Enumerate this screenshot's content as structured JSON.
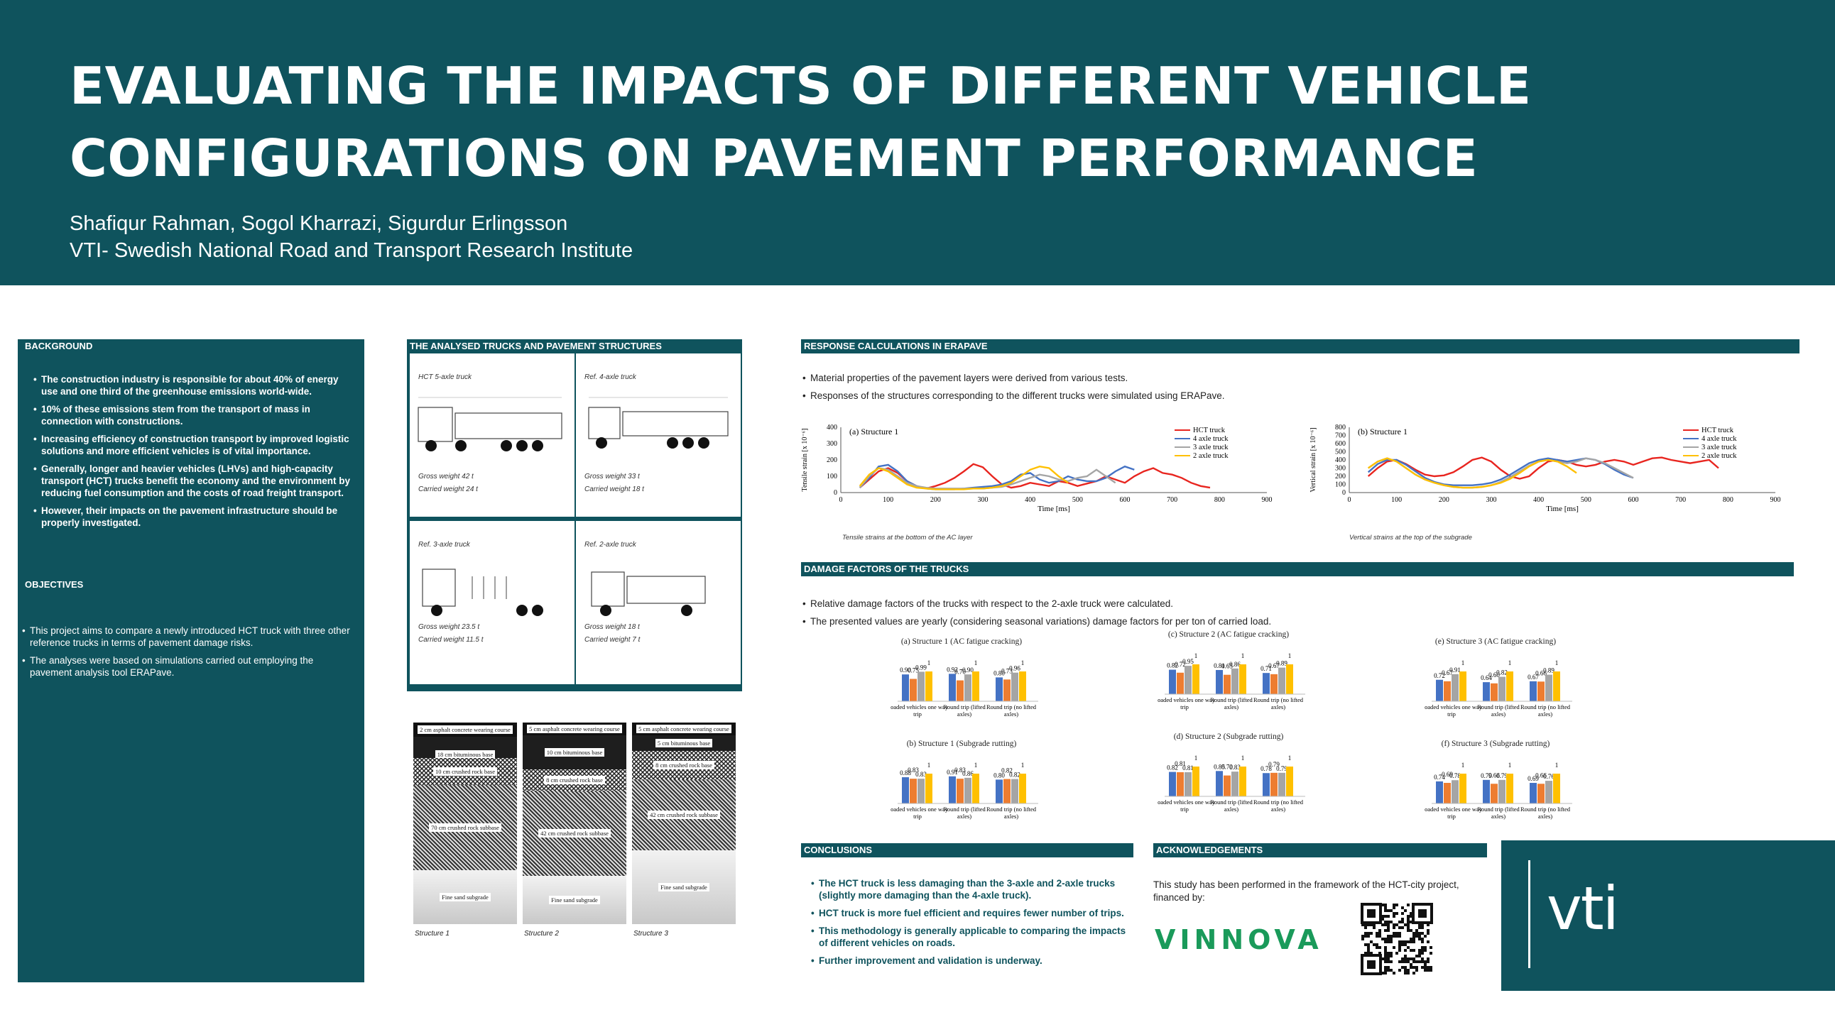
{
  "poster": {
    "title_line1": "EVALUATING THE IMPACTS OF DIFFERENT VEHICLE",
    "title_line2": "CONFIGURATIONS ON PAVEMENT PERFORMANCE",
    "authors": "Shafiqur Rahman, Sogol Kharrazi, Sigurdur Erlingsson",
    "affiliation": "VTI- Swedish National Road and Transport Research Institute"
  },
  "background": {
    "heading": "BACKGROUND",
    "bullets": [
      "The construction industry is responsible for about 40% of energy use and one third of the greenhouse emissions world-wide.",
      "10% of these emissions stem from the transport of mass in connection with constructions.",
      "Increasing efficiency of construction transport by improved logistic solutions and more efficient vehicles is of vital importance.",
      "Generally, longer and heavier vehicles (LHVs) and high-capacity transport (HCT) trucks benefit the economy and the environment by reducing fuel consumption and the costs of road freight transport.",
      "However, their impacts on the pavement infrastructure should be properly investigated."
    ]
  },
  "objectives": {
    "heading": "OBJECTIVES",
    "bullets": [
      "This project aims to compare a newly introduced HCT truck with three other reference trucks in terms of pavement damage risks.",
      "The analyses were based on simulations carried out employing the pavement analysis tool ERAPave."
    ]
  },
  "trucks": {
    "heading": "THE ANALYSED TRUCKS AND PAVEMENT STRUCTURES",
    "items": [
      {
        "name": "HCT 5-axle truck",
        "gross": "Gross weight 42 t",
        "carried": "Carried weight 24 t"
      },
      {
        "name": "Ref. 4-axle truck",
        "gross": "Gross weight 33 t",
        "carried": "Carried weight 18 t"
      },
      {
        "name": "Ref. 3-axle truck",
        "gross": "Gross weight 23.5 t",
        "carried": "Carried weight 11.5 t"
      },
      {
        "name": "Ref. 2-axle truck",
        "gross": "Gross weight 18 t",
        "carried": "Carried weight 7 t"
      }
    ]
  },
  "structures": [
    {
      "caption": "Structure 1",
      "layers": [
        "2 cm asphalt concrete wearing course",
        "18 cm bituminous base",
        "10 cm crushed rock base",
        "70 cm crushed rock subbase",
        "Fine sand subgrade"
      ]
    },
    {
      "caption": "Structure 2",
      "layers": [
        "5 cm asphalt concrete wearing course",
        "10 cm bituminous base",
        "8 cm crushed rock base",
        "42 cm crushed rock subbase",
        "Fine sand subgrade"
      ]
    },
    {
      "caption": "Structure 3",
      "layers": [
        "5 cm asphalt concrete wearing course",
        "5 cm bituminous base",
        "8 cm crushed rock base",
        "42 cm crushed rock subbase",
        "Fine sand subgrade"
      ]
    }
  ],
  "response": {
    "heading": "RESPONSE CALCULATIONS IN ERAPAVE",
    "bullets": [
      "Material properties of the pavement layers were derived from various tests.",
      "Responses of the structures corresponding to the different trucks were simulated using ERAPave."
    ],
    "caption_left": "Tensile strains at the bottom of the AC layer",
    "caption_right": "Vertical strains at the top of the subgrade"
  },
  "damage": {
    "heading": "DAMAGE FACTORS OF THE TRUCKS",
    "bullets": [
      "Relative damage factors of the trucks with respect to the 2-axle truck were calculated.",
      "The presented values are yearly (considering seasonal variations) damage factors for per ton of carried load."
    ]
  },
  "conclusions": {
    "heading": "CONCLUSIONS",
    "bullets": [
      "The HCT truck is less damaging than the 3-axle and 2-axle trucks (slightly more damaging than the 4-axle truck).",
      "HCT truck is more fuel efficient and requires fewer number of trips.",
      "This methodology is generally applicable to comparing the impacts of different vehicles on roads.",
      "Further improvement and validation is underway."
    ]
  },
  "acknowledgements": {
    "heading": "ACKNOWLEDGEMENTS",
    "text": "This study has been performed in the framework of the HCT-city project, financed by:",
    "funder_logo": "VINNOVA"
  },
  "logo": {
    "text": "vti"
  },
  "colors": {
    "brand": "#0f535d",
    "hct": "#e8251f",
    "ax4": "#4472c4",
    "ax3": "#a5a5a5",
    "ax2": "#ffc000",
    "bar_ax3": "#ed7d31"
  },
  "chart_data": [
    {
      "type": "line",
      "title": "(a) Structure 1",
      "xlabel": "Time [ms]",
      "ylabel": "Tensile strain [x 10⁻⁶]",
      "xlim": [
        0,
        900
      ],
      "ylim": [
        0,
        400
      ],
      "xticks": [
        0,
        100,
        200,
        300,
        400,
        500,
        600,
        700,
        800,
        900
      ],
      "yticks": [
        0,
        100,
        200,
        300,
        400
      ],
      "legend": "top-right",
      "series": [
        {
          "name": "HCT truck",
          "x": [
            40,
            60,
            80,
            100,
            120,
            140,
            160,
            180,
            200,
            220,
            240,
            260,
            280,
            300,
            320,
            340,
            360,
            380,
            400,
            420,
            440,
            460,
            480,
            500,
            520,
            540,
            560,
            580,
            600,
            620,
            640,
            660,
            680,
            700,
            720,
            740,
            760,
            780
          ],
          "y": [
            30,
            80,
            130,
            150,
            120,
            70,
            40,
            25,
            40,
            60,
            90,
            130,
            175,
            155,
            100,
            50,
            30,
            40,
            60,
            50,
            40,
            70,
            60,
            40,
            55,
            70,
            100,
            80,
            60,
            100,
            130,
            150,
            120,
            110,
            90,
            60,
            40,
            30
          ]
        },
        {
          "name": "4 axle truck",
          "x": [
            40,
            60,
            80,
            100,
            120,
            140,
            160,
            180,
            200,
            220,
            240,
            260,
            280,
            300,
            320,
            340,
            360,
            380,
            400,
            420,
            440,
            460,
            480,
            500,
            520,
            540,
            560,
            580,
            600,
            620
          ],
          "y": [
            30,
            90,
            160,
            170,
            130,
            70,
            40,
            25,
            20,
            20,
            20,
            25,
            30,
            35,
            40,
            50,
            70,
            110,
            120,
            80,
            60,
            70,
            100,
            80,
            70,
            70,
            90,
            130,
            160,
            140
          ]
        },
        {
          "name": "3 axle truck",
          "x": [
            40,
            60,
            80,
            100,
            120,
            140,
            160,
            180,
            200,
            220,
            240,
            260,
            280,
            300,
            320,
            340,
            360,
            380,
            400,
            420,
            440,
            460,
            480,
            500,
            520,
            540,
            560,
            580
          ],
          "y": [
            30,
            100,
            150,
            140,
            100,
            60,
            40,
            30,
            25,
            25,
            25,
            25,
            25,
            25,
            30,
            35,
            50,
            70,
            90,
            110,
            100,
            80,
            70,
            90,
            100,
            140,
            100,
            60
          ]
        },
        {
          "name": "2 axle truck",
          "x": [
            40,
            60,
            80,
            100,
            120,
            140,
            160,
            180,
            200,
            220,
            240,
            260,
            280,
            300,
            320,
            340,
            360,
            380,
            400,
            420,
            440,
            460,
            480
          ],
          "y": [
            40,
            110,
            150,
            130,
            90,
            50,
            30,
            25,
            20,
            20,
            20,
            20,
            25,
            25,
            30,
            40,
            60,
            100,
            140,
            160,
            150,
            100,
            60
          ]
        }
      ]
    },
    {
      "type": "line",
      "title": "(b) Structure 1",
      "xlabel": "Time [ms]",
      "ylabel": "Vertical strain [x 10⁻⁶]",
      "xlim": [
        0,
        900
      ],
      "ylim": [
        0,
        800
      ],
      "xticks": [
        0,
        100,
        200,
        300,
        400,
        500,
        600,
        700,
        800,
        900
      ],
      "yticks": [
        0,
        100,
        200,
        300,
        400,
        500,
        600,
        700,
        800
      ],
      "legend": "top-right",
      "series": [
        {
          "name": "HCT truck",
          "x": [
            40,
            60,
            80,
            100,
            120,
            140,
            160,
            180,
            200,
            220,
            240,
            260,
            280,
            300,
            320,
            340,
            360,
            380,
            400,
            420,
            440,
            460,
            480,
            500,
            520,
            540,
            560,
            580,
            600,
            620,
            640,
            660,
            680,
            700,
            720,
            740,
            760,
            780
          ],
          "y": [
            200,
            300,
            380,
            400,
            350,
            280,
            220,
            200,
            210,
            250,
            320,
            400,
            430,
            380,
            280,
            200,
            170,
            200,
            300,
            380,
            400,
            380,
            340,
            320,
            340,
            380,
            400,
            380,
            340,
            380,
            420,
            430,
            400,
            380,
            360,
            380,
            400,
            300
          ]
        },
        {
          "name": "4 axle truck",
          "x": [
            40,
            60,
            80,
            100,
            120,
            140,
            160,
            180,
            200,
            220,
            240,
            260,
            280,
            300,
            320,
            340,
            360,
            380,
            400,
            420,
            440,
            460,
            480,
            500,
            520,
            540,
            560,
            580,
            600
          ],
          "y": [
            250,
            350,
            400,
            400,
            340,
            260,
            180,
            130,
            100,
            90,
            90,
            90,
            100,
            120,
            160,
            220,
            290,
            360,
            400,
            420,
            400,
            380,
            400,
            420,
            400,
            350,
            280,
            220,
            180
          ]
        },
        {
          "name": "3 axle truck",
          "x": [
            40,
            60,
            80,
            100,
            120,
            140,
            160,
            180,
            200,
            220,
            240,
            260,
            280,
            300,
            320,
            340,
            360,
            380,
            400,
            420,
            440,
            460,
            480,
            500,
            520,
            540,
            560,
            580,
            600
          ],
          "y": [
            300,
            380,
            420,
            380,
            300,
            220,
            160,
            120,
            90,
            70,
            60,
            60,
            70,
            90,
            130,
            190,
            260,
            330,
            380,
            400,
            380,
            360,
            380,
            420,
            400,
            360,
            300,
            240,
            180
          ]
        },
        {
          "name": "2 axle truck",
          "x": [
            40,
            60,
            80,
            100,
            120,
            140,
            160,
            180,
            200,
            220,
            240,
            260,
            280,
            300,
            320,
            340,
            360,
            380,
            400,
            420,
            440,
            460,
            480
          ],
          "y": [
            300,
            380,
            420,
            380,
            300,
            220,
            160,
            120,
            90,
            70,
            60,
            60,
            70,
            90,
            120,
            170,
            240,
            320,
            380,
            400,
            380,
            320,
            240
          ]
        }
      ]
    },
    {
      "type": "bar",
      "title": "(a) Structure 1 (AC fatigue cracking)",
      "categories": [
        "Loaded vehicles one way trip",
        "Round trip (lifted axles)",
        "Round trip (no lifted axles)"
      ],
      "series": [
        {
          "name": "HCT truck",
          "values": [
            0.9,
            0.92,
            0.8
          ]
        },
        {
          "name": "3 axle truck",
          "values": [
            0.75,
            0.7,
            0.73
          ]
        },
        {
          "name": "4 axle truck",
          "values": [
            0.99,
            0.9,
            0.96
          ]
        },
        {
          "name": "2 axle truck",
          "values": [
            1,
            1,
            1
          ]
        }
      ]
    },
    {
      "type": "bar",
      "title": "(c) Structure 2 (AC fatigue cracking)",
      "categories": [
        "Loaded vehicles one way trip",
        "Round trip (lifted axles)",
        "Round trip (no lifted axles)"
      ],
      "series": [
        {
          "name": "HCT truck",
          "values": [
            0.82,
            0.81,
            0.71
          ]
        },
        {
          "name": "3 axle truck",
          "values": [
            0.72,
            0.65,
            0.67
          ]
        },
        {
          "name": "4 axle truck",
          "values": [
            0.95,
            0.86,
            0.89
          ]
        },
        {
          "name": "2 axle truck",
          "values": [
            1,
            1,
            1
          ]
        }
      ]
    },
    {
      "type": "bar",
      "title": "(e) Structure 3 (AC fatigue cracking)",
      "categories": [
        "Loaded vehicles one way trip",
        "Round trip (lifted axles)",
        "Round trip (no lifted axles)"
      ],
      "series": [
        {
          "name": "HCT truck",
          "values": [
            0.72,
            0.64,
            0.67
          ]
        },
        {
          "name": "3 axle truck",
          "values": [
            0.67,
            0.6,
            0.66
          ]
        },
        {
          "name": "4 axle truck",
          "values": [
            0.91,
            0.82,
            0.89
          ]
        },
        {
          "name": "2 axle truck",
          "values": [
            1,
            1,
            1
          ]
        }
      ]
    },
    {
      "type": "bar",
      "title": "(b) Structure 1 (Subgrade rutting)",
      "categories": [
        "Loaded vehicles one way trip",
        "Round trip (lifted axles)",
        "Round trip (no lifted axles)"
      ],
      "series": [
        {
          "name": "HCT truck",
          "values": [
            0.88,
            0.91,
            0.8
          ]
        },
        {
          "name": "3 axle truck",
          "values": [
            0.83,
            0.83,
            0.82
          ]
        },
        {
          "name": "4 axle truck",
          "values": [
            0.83,
            0.86,
            0.82
          ]
        },
        {
          "name": "2 axle truck",
          "values": [
            1,
            1,
            1
          ]
        }
      ]
    },
    {
      "type": "bar",
      "title": "(d) Structure 2 (Subgrade rutting)",
      "categories": [
        "Loaded vehicles one way trip",
        "Round trip (lifted axles)",
        "Round trip (no lifted axles)"
      ],
      "series": [
        {
          "name": "HCT truck",
          "values": [
            0.82,
            0.85,
            0.78
          ]
        },
        {
          "name": "3 axle truck",
          "values": [
            0.81,
            0.7,
            0.79
          ]
        },
        {
          "name": "4 axle truck",
          "values": [
            0.81,
            0.83,
            0.79
          ]
        },
        {
          "name": "2 axle truck",
          "values": [
            1,
            1,
            1
          ]
        }
      ]
    },
    {
      "type": "bar",
      "title": "(f) Structure 3 (Subgrade rutting)",
      "categories": [
        "Loaded vehicles one way trip",
        "Round trip (lifted axles)",
        "Round trip (no lifted axles)"
      ],
      "series": [
        {
          "name": "HCT truck",
          "values": [
            0.74,
            0.79,
            0.69
          ]
        },
        {
          "name": "3 axle truck",
          "values": [
            0.69,
            0.66,
            0.66
          ]
        },
        {
          "name": "4 axle truck",
          "values": [
            0.78,
            0.79,
            0.76
          ]
        },
        {
          "name": "2 axle truck",
          "values": [
            1,
            1,
            1
          ]
        }
      ]
    }
  ]
}
